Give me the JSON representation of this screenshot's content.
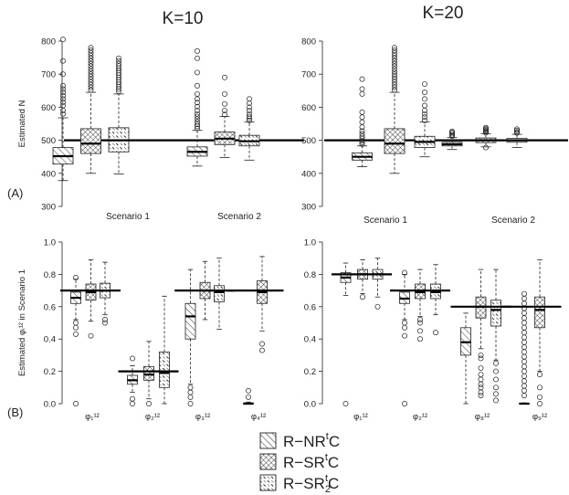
{
  "headings": {
    "k10": "K=10",
    "k20": "K=20",
    "row_a": "(A)",
    "row_b": "(B)"
  },
  "legend": [
    {
      "label": "R−NR",
      "sup": "t",
      "tail": "C",
      "pattern": "diag"
    },
    {
      "label": "R−SR",
      "sup": "t",
      "tail": "C",
      "pattern": "cross"
    },
    {
      "label": "R−SR",
      "sub": "2",
      "sup": "t",
      "tail": "C",
      "pattern": "dash"
    }
  ],
  "chart_data": [
    {
      "type": "box",
      "id": "A10",
      "ylabel": "Estimated N",
      "ylim": [
        300,
        800
      ],
      "yticks": [
        300,
        400,
        500,
        600,
        700,
        800
      ],
      "reference_line": 500,
      "groups": [
        "Scenario 1",
        "Scenario 2"
      ],
      "boxes": [
        {
          "group": 0,
          "pattern": "diag",
          "min": 378,
          "q1": 428,
          "median": 452,
          "q3": 478,
          "max": 568,
          "outliers": [
            580,
            590,
            605,
            615,
            625,
            635,
            645,
            655,
            665,
            700,
            740,
            805
          ]
        },
        {
          "group": 0,
          "pattern": "cross",
          "min": 400,
          "q1": 460,
          "median": 490,
          "q3": 535,
          "max": 645,
          "outliers": [
            652,
            660,
            668,
            676,
            684,
            692,
            700,
            708,
            716,
            724,
            732,
            740,
            748,
            756,
            764,
            772,
            780
          ]
        },
        {
          "group": 0,
          "pattern": "dash",
          "min": 398,
          "q1": 465,
          "median": 500,
          "q3": 538,
          "max": 640,
          "outliers": [
            648,
            655,
            662,
            669,
            676,
            683,
            690,
            697,
            704,
            711,
            718,
            725,
            732,
            740,
            748
          ]
        },
        {
          "group": 1,
          "pattern": "diag",
          "min": 422,
          "q1": 452,
          "median": 465,
          "q3": 480,
          "max": 530,
          "outliers": [
            536,
            542,
            548,
            556,
            564,
            572,
            580,
            590,
            602,
            614,
            625,
            640,
            665,
            705,
            748,
            770
          ]
        },
        {
          "group": 1,
          "pattern": "cross",
          "min": 448,
          "q1": 487,
          "median": 505,
          "q3": 525,
          "max": 572,
          "outliers": [
            578,
            590,
            610,
            640,
            690
          ]
        },
        {
          "group": 1,
          "pattern": "dash",
          "min": 440,
          "q1": 483,
          "median": 497,
          "q3": 515,
          "max": 555,
          "outliers": [
            560,
            566,
            572,
            580,
            590,
            600,
            612,
            625
          ]
        }
      ]
    },
    {
      "type": "box",
      "id": "A20",
      "ylabel": "",
      "ylim": [
        300,
        800
      ],
      "yticks": [
        300,
        400,
        500,
        600,
        700,
        800
      ],
      "reference_line": 500,
      "groups": [
        "Scenario 1",
        "Scenario 2"
      ],
      "boxes": [
        {
          "group": 0,
          "pattern": "diag",
          "min": 420,
          "q1": 440,
          "median": 450,
          "q3": 462,
          "max": 483,
          "outliers": [
            488,
            493,
            498,
            505,
            512,
            520,
            528,
            540,
            555,
            570,
            585,
            640,
            655,
            685
          ]
        },
        {
          "group": 0,
          "pattern": "cross",
          "min": 400,
          "q1": 460,
          "median": 490,
          "q3": 535,
          "max": 645,
          "outliers": [
            652,
            660,
            668,
            676,
            684,
            692,
            700,
            708,
            716,
            724,
            732,
            740,
            748,
            756,
            764,
            772,
            780
          ]
        },
        {
          "group": 0,
          "pattern": "dash",
          "min": 450,
          "q1": 478,
          "median": 495,
          "q3": 512,
          "max": 555,
          "outliers": [
            560,
            570,
            580,
            590,
            605,
            625,
            645,
            670
          ]
        },
        {
          "group": 1,
          "pattern": "diag",
          "min": 472,
          "q1": 483,
          "median": 488,
          "q3": 494,
          "max": 508,
          "outliers": [
            512,
            516,
            520,
            524,
            527
          ]
        },
        {
          "group": 1,
          "pattern": "cross",
          "min": 480,
          "q1": 493,
          "median": 500,
          "q3": 507,
          "max": 520,
          "outliers": [
            478,
            523,
            526,
            529,
            532,
            535,
            538
          ]
        },
        {
          "group": 1,
          "pattern": "dash",
          "min": 478,
          "q1": 494,
          "median": 500,
          "q3": 506,
          "max": 518,
          "outliers": [
            522,
            526,
            530,
            534
          ]
        }
      ]
    },
    {
      "type": "box",
      "id": "B10",
      "ylabel": "Estimated φᵢ¹² in Scenario 1",
      "ylim": [
        0,
        1
      ],
      "yticks": [
        0.0,
        0.2,
        0.4,
        0.6,
        0.8,
        1.0
      ],
      "groups": [
        "φ₁¹²",
        "φ₂¹²",
        "φ₃¹²",
        "φ₄¹²"
      ],
      "group_lines": [
        0.7,
        0.2,
        0.7,
        0.7
      ],
      "boxes": [
        {
          "group": 0,
          "pattern": "diag",
          "min": 0.52,
          "q1": 0.62,
          "median": 0.655,
          "q3": 0.69,
          "max": 0.77,
          "outliers": [
            0.78,
            0.5,
            0.47,
            0.43,
            0.0
          ]
        },
        {
          "group": 0,
          "pattern": "cross",
          "min": 0.51,
          "q1": 0.64,
          "median": 0.69,
          "q3": 0.74,
          "max": 0.89,
          "outliers": [
            0.42
          ]
        },
        {
          "group": 0,
          "pattern": "dash",
          "min": 0.55,
          "q1": 0.655,
          "median": 0.7,
          "q3": 0.745,
          "max": 0.875,
          "outliers": [
            0.52,
            0.5
          ]
        },
        {
          "group": 1,
          "pattern": "diag",
          "min": 0.07,
          "q1": 0.12,
          "median": 0.145,
          "q3": 0.175,
          "max": 0.235,
          "outliers": [
            0.28,
            0.03,
            0.0
          ]
        },
        {
          "group": 1,
          "pattern": "cross",
          "min": 0.03,
          "q1": 0.145,
          "median": 0.18,
          "q3": 0.23,
          "max": 0.385,
          "outliers": [
            0.0
          ]
        },
        {
          "group": 1,
          "pattern": "dash",
          "min": 0.0,
          "q1": 0.1,
          "median": 0.19,
          "q3": 0.32,
          "max": 0.665,
          "outliers": []
        },
        {
          "group": 2,
          "pattern": "diag",
          "min": 0.12,
          "q1": 0.4,
          "median": 0.54,
          "q3": 0.62,
          "max": 0.83,
          "outliers": [
            0.1,
            0.07,
            0.04,
            0.0
          ]
        },
        {
          "group": 2,
          "pattern": "cross",
          "min": 0.52,
          "q1": 0.65,
          "median": 0.7,
          "q3": 0.75,
          "max": 0.88,
          "outliers": []
        },
        {
          "group": 2,
          "pattern": "dash",
          "min": 0.46,
          "q1": 0.63,
          "median": 0.69,
          "q3": 0.73,
          "max": 0.9,
          "outliers": []
        },
        {
          "group": 3,
          "pattern": "diag",
          "min": 0.0,
          "q1": 0.0,
          "median": 0.0,
          "q3": 0.005,
          "max": 0.01,
          "outliers": [
            0.04,
            0.08
          ]
        },
        {
          "group": 3,
          "pattern": "cross",
          "min": 0.45,
          "q1": 0.62,
          "median": 0.69,
          "q3": 0.76,
          "max": 0.91,
          "outliers": [
            0.37,
            0.33
          ]
        }
      ]
    },
    {
      "type": "box",
      "id": "B20",
      "ylabel": "",
      "ylim": [
        0,
        1
      ],
      "yticks": [
        0.0,
        0.2,
        0.4,
        0.6,
        0.8,
        1.0
      ],
      "groups": [
        "φ₁¹²",
        "φ₂¹²",
        "φ₈¹²",
        "φ₉¹²"
      ],
      "group_lines": [
        0.8,
        0.7,
        0.6,
        0.6
      ],
      "boxes": [
        {
          "group": 0,
          "pattern": "diag",
          "min": 0.67,
          "q1": 0.75,
          "median": 0.78,
          "q3": 0.81,
          "max": 0.87,
          "outliers": [
            0.0
          ]
        },
        {
          "group": 0,
          "pattern": "cross",
          "min": 0.68,
          "q1": 0.77,
          "median": 0.8,
          "q3": 0.83,
          "max": 0.89,
          "outliers": [
            0.66
          ]
        },
        {
          "group": 0,
          "pattern": "dash",
          "min": 0.66,
          "q1": 0.77,
          "median": 0.8,
          "q3": 0.83,
          "max": 0.9,
          "outliers": [
            0.6
          ]
        },
        {
          "group": 1,
          "pattern": "diag",
          "min": 0.52,
          "q1": 0.62,
          "median": 0.65,
          "q3": 0.69,
          "max": 0.8,
          "outliers": [
            0.81,
            0.5,
            0.47,
            0.42,
            0.0
          ]
        },
        {
          "group": 1,
          "pattern": "cross",
          "min": 0.54,
          "q1": 0.65,
          "median": 0.69,
          "q3": 0.74,
          "max": 0.83,
          "outliers": [
            0.52,
            0.5,
            0.45,
            0.4
          ]
        },
        {
          "group": 1,
          "pattern": "dash",
          "min": 0.55,
          "q1": 0.65,
          "median": 0.69,
          "q3": 0.74,
          "max": 0.86,
          "outliers": [
            0.44
          ]
        },
        {
          "group": 2,
          "pattern": "diag",
          "min": 0.0,
          "q1": 0.3,
          "median": 0.38,
          "q3": 0.47,
          "max": 0.56,
          "outliers": []
        },
        {
          "group": 2,
          "pattern": "cross",
          "min": 0.34,
          "q1": 0.53,
          "median": 0.6,
          "q3": 0.66,
          "max": 0.83,
          "outliers": [
            0.3,
            0.28,
            0.22,
            0.18,
            0.15,
            0.12,
            0.1,
            0.07,
            0.05
          ]
        },
        {
          "group": 2,
          "pattern": "dash",
          "min": 0.27,
          "q1": 0.48,
          "median": 0.58,
          "q3": 0.64,
          "max": 0.83,
          "outliers": [
            0.25,
            0.2,
            0.15,
            0.1,
            0.06,
            0.02
          ]
        },
        {
          "group": 3,
          "pattern": "diag",
          "min": 0.0,
          "q1": 0.0,
          "median": 0.0,
          "q3": 0.003,
          "max": 0.005,
          "outliers": [
            0.68,
            0.65,
            0.62,
            0.59,
            0.56,
            0.53,
            0.5,
            0.47,
            0.44,
            0.41,
            0.38,
            0.35,
            0.32,
            0.29,
            0.26,
            0.23,
            0.2,
            0.17,
            0.14,
            0.11,
            0.08,
            0.05
          ]
        },
        {
          "group": 3,
          "pattern": "cross",
          "min": 0.2,
          "q1": 0.47,
          "median": 0.58,
          "q3": 0.66,
          "max": 0.89,
          "outliers": [
            0.18,
            0.1,
            0.04,
            0.0
          ]
        }
      ]
    }
  ]
}
